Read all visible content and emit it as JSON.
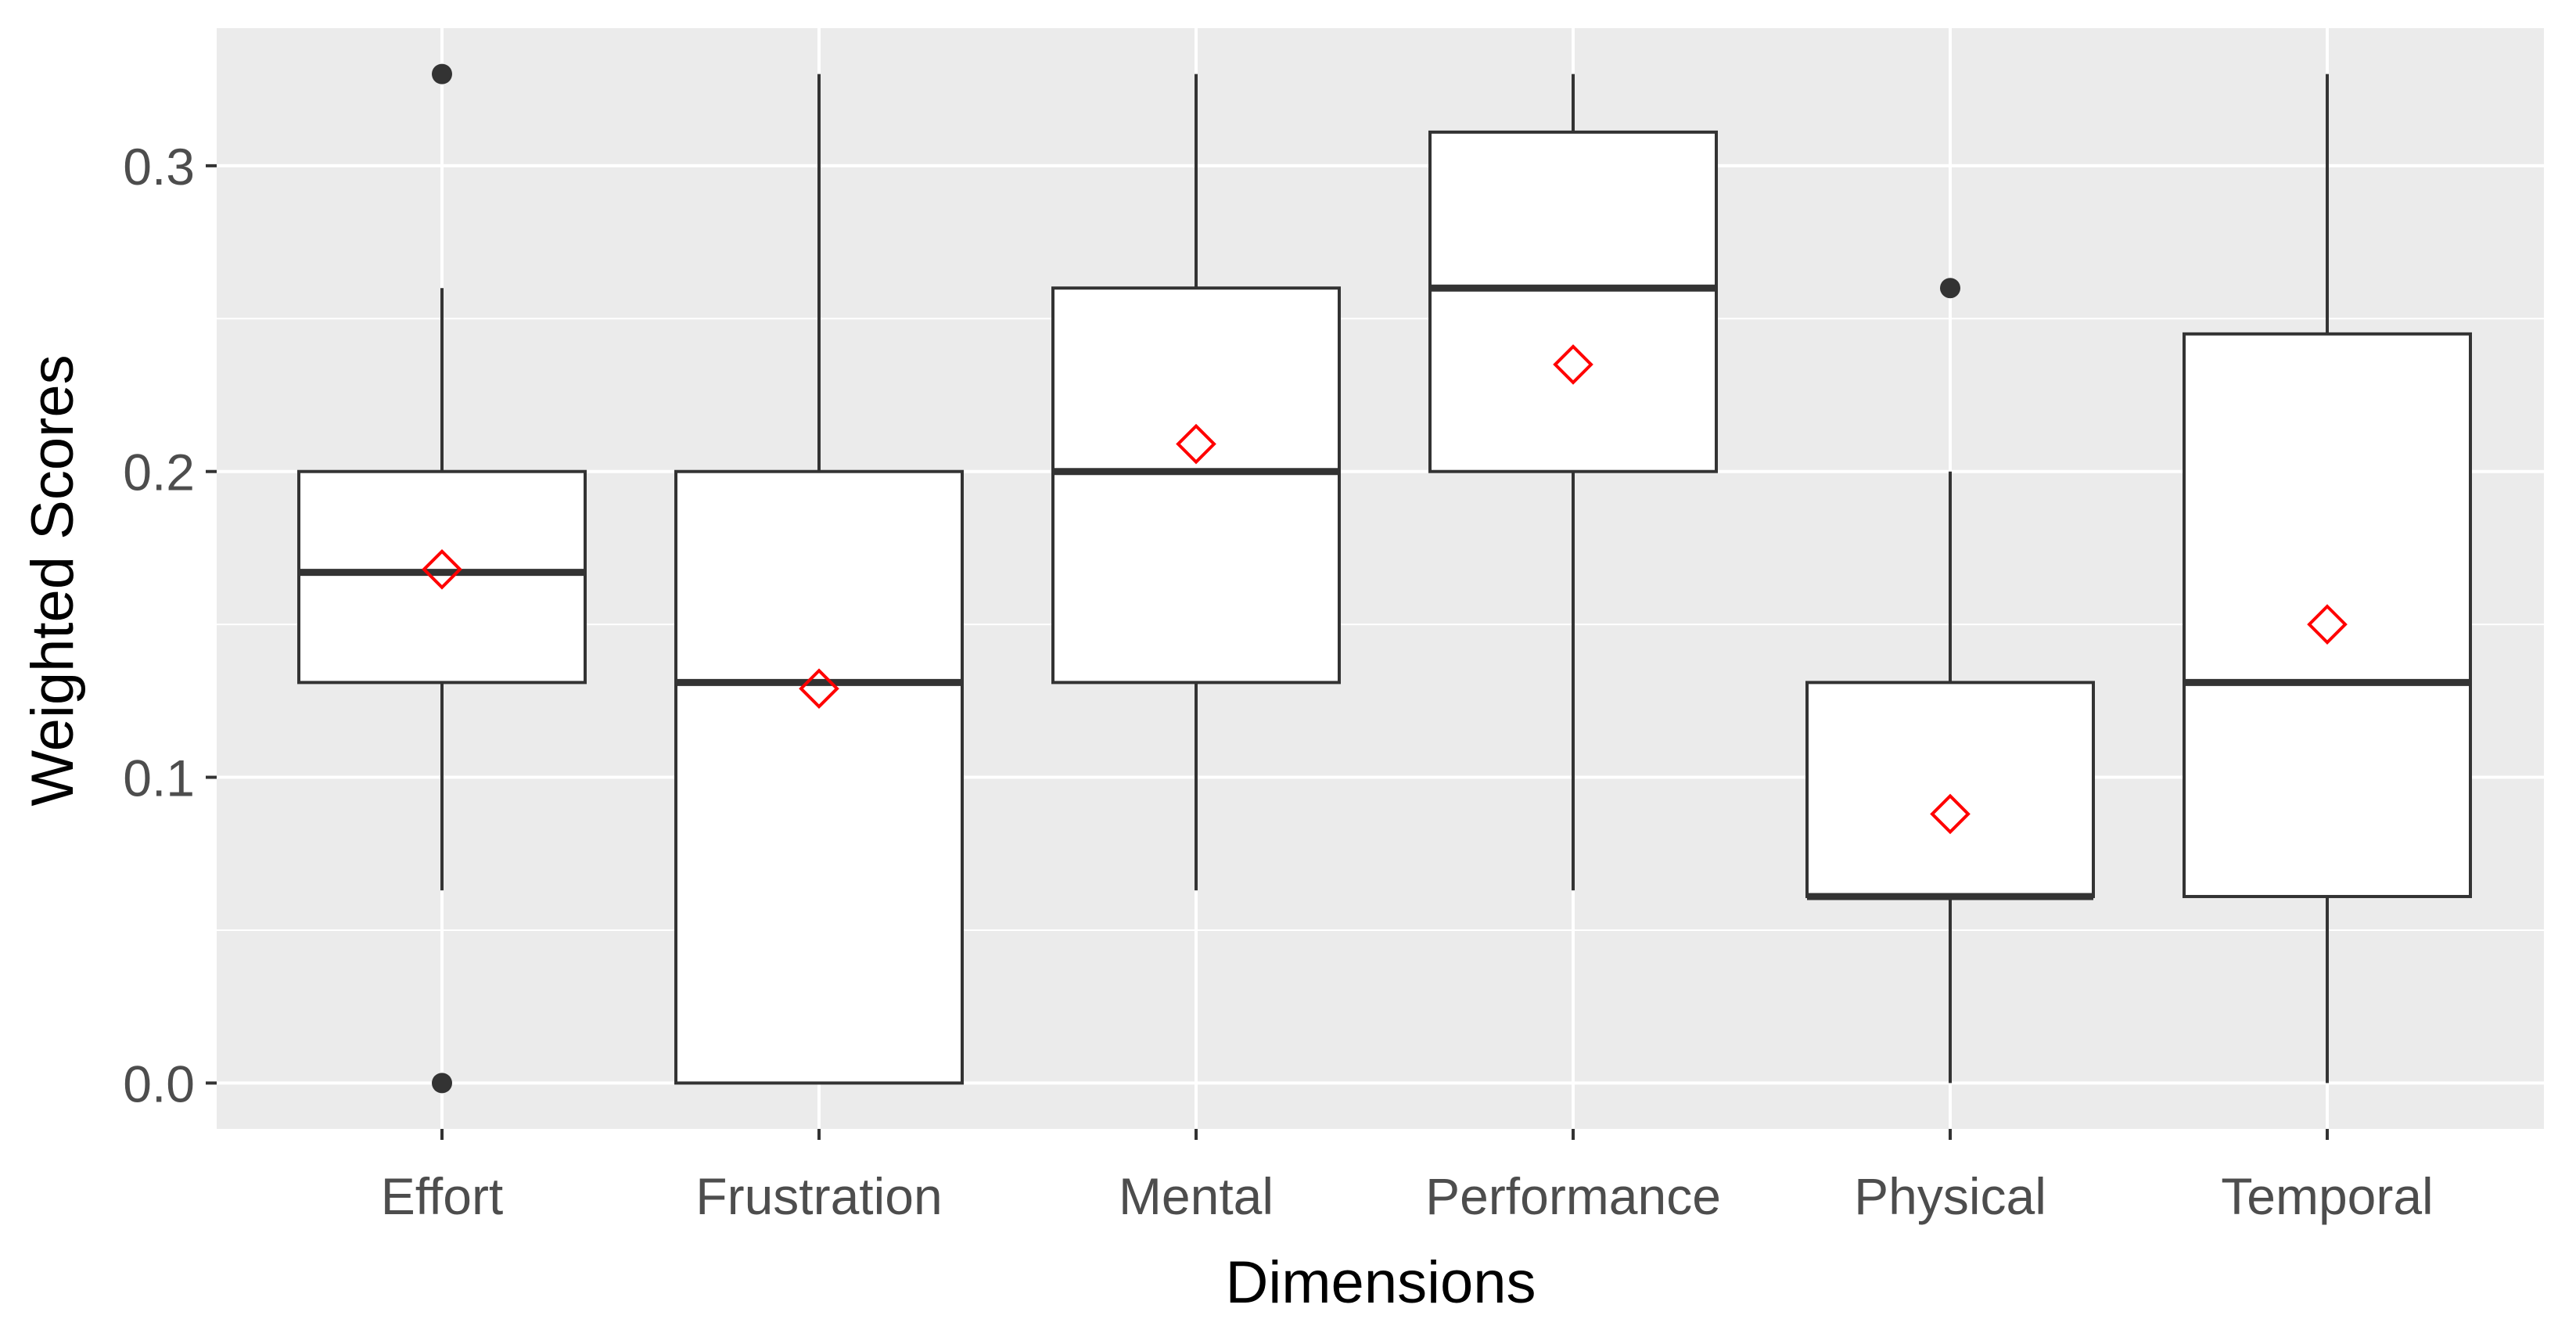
{
  "chart_data": {
    "type": "boxplot",
    "xlabel": "Dimensions",
    "ylabel": "Weighted Scores",
    "ylim": [
      -0.015,
      0.345
    ],
    "yticks": [
      0.0,
      0.1,
      0.2,
      0.3
    ],
    "ytick_labels": [
      "0.0",
      "0.1",
      "0.2",
      "0.3"
    ],
    "grid": true,
    "categories": [
      "Effort",
      "Frustration",
      "Mental",
      "Performance",
      "Physical",
      "Temporal"
    ],
    "boxes": [
      {
        "category": "Effort",
        "whisker_low": 0.063,
        "q1": 0.131,
        "median": 0.167,
        "q3": 0.2,
        "whisker_high": 0.26,
        "mean": 0.168,
        "outliers": [
          0.33,
          0.0
        ]
      },
      {
        "category": "Frustration",
        "whisker_low": 0.0,
        "q1": 0.0,
        "median": 0.131,
        "q3": 0.2,
        "whisker_high": 0.33,
        "mean": 0.129,
        "outliers": []
      },
      {
        "category": "Mental",
        "whisker_low": 0.063,
        "q1": 0.131,
        "median": 0.2,
        "q3": 0.26,
        "whisker_high": 0.33,
        "mean": 0.209,
        "outliers": []
      },
      {
        "category": "Performance",
        "whisker_low": 0.063,
        "q1": 0.2,
        "median": 0.26,
        "q3": 0.311,
        "whisker_high": 0.33,
        "mean": 0.235,
        "outliers": []
      },
      {
        "category": "Physical",
        "whisker_low": 0.0,
        "q1": 0.061,
        "median": 0.061,
        "q3": 0.131,
        "whisker_high": 0.2,
        "mean": 0.088,
        "outliers": [
          0.26
        ]
      },
      {
        "category": "Temporal",
        "whisker_low": 0.0,
        "q1": 0.061,
        "median": 0.131,
        "q3": 0.245,
        "whisker_high": 0.33,
        "mean": 0.15,
        "outliers": []
      }
    ],
    "colors": {
      "panel": "#ebebeb",
      "grid_major": "#ffffff",
      "box_fill": "#ffffff",
      "box_stroke": "#333333",
      "mean_marker": "#ff0000",
      "outlier": "#333333",
      "tick_text": "#4d4d4d",
      "title_text": "#000000"
    }
  }
}
